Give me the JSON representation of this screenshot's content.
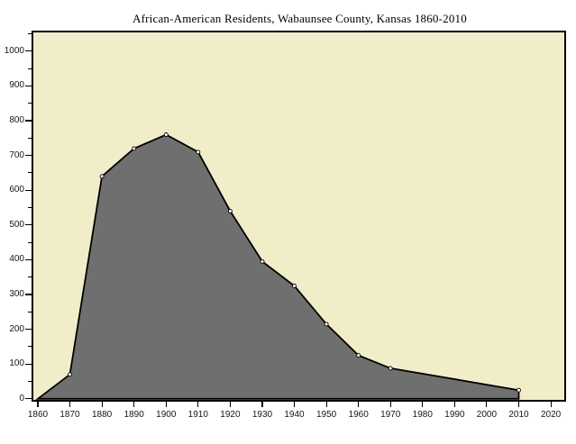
{
  "chart_data": {
    "type": "area",
    "title": "African-American Residents, Wabaunsee County, Kansas 1860-2010",
    "series": [
      {
        "name": "African-American residents",
        "x": [
          1860,
          1870,
          1880,
          1890,
          1900,
          1910,
          1920,
          1930,
          1940,
          1950,
          1960,
          1970,
          2010
        ],
        "values": [
          0,
          70,
          640,
          720,
          760,
          710,
          540,
          395,
          325,
          215,
          125,
          88,
          25
        ]
      }
    ],
    "x_ticks": [
      1860,
      1870,
      1880,
      1890,
      1900,
      1910,
      1920,
      1930,
      1940,
      1950,
      1960,
      1970,
      1980,
      1990,
      2000,
      2010,
      2020
    ],
    "y_ticks": [
      0,
      100,
      200,
      300,
      400,
      500,
      600,
      700,
      800,
      900,
      1000
    ],
    "y_minor_tick_step": 50,
    "xlim": [
      1858.6,
      2024.2
    ],
    "ylim": [
      -3,
      1054
    ],
    "grid": false,
    "legend": "none",
    "marker": "open-circle",
    "notes": "no data markers between 1970 and 2010; straight interpolated segment",
    "colors": {
      "page_background": "#ffffff",
      "plot_background": "#f1edc9",
      "area_fill": "#6f6f6f",
      "line": "#000000",
      "marker_fill": "#ffffff",
      "tick": "#000000",
      "tick_text": "#151515",
      "border": "#000000"
    }
  }
}
